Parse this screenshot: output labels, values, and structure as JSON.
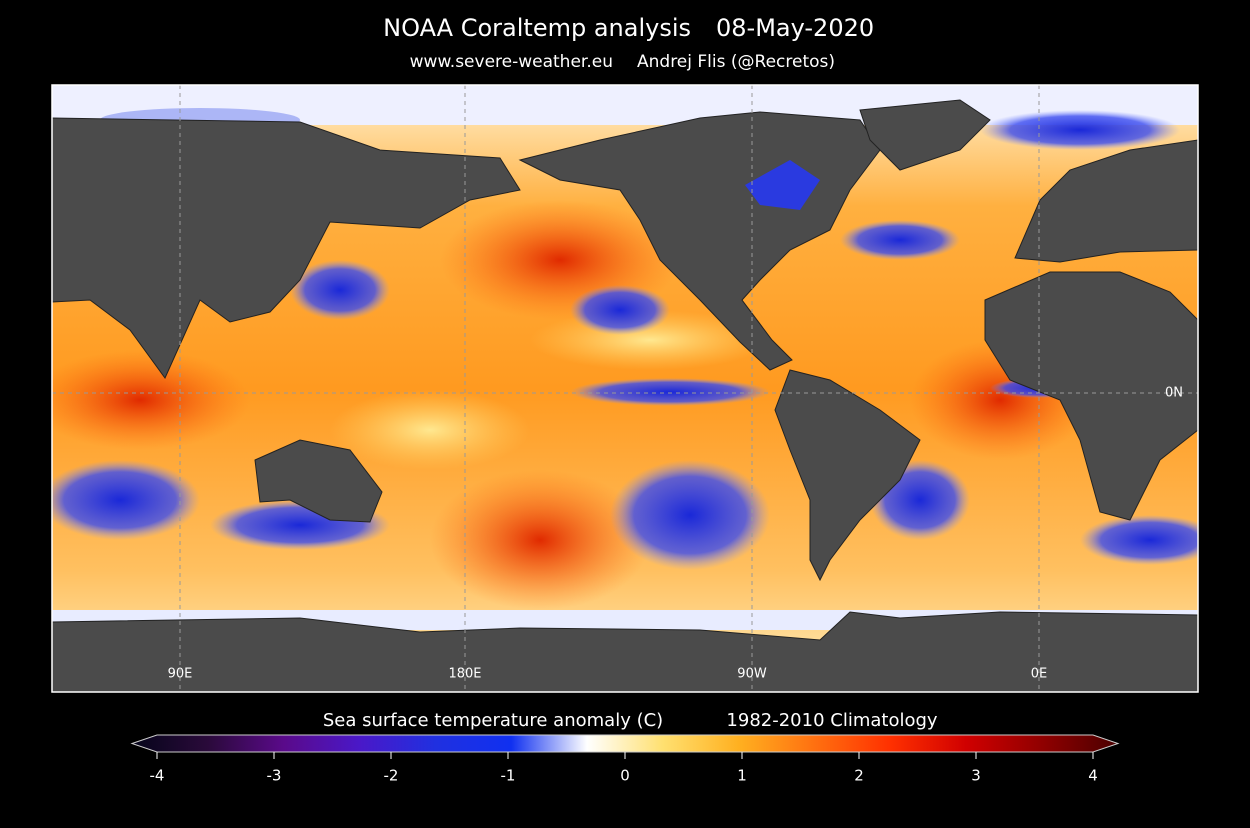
{
  "header": {
    "title": "NOAA Coraltemp analysis",
    "date": "08-May-2020",
    "site": "www.severe-weather.eu",
    "author": "Andrej Flis (@Recretos)"
  },
  "map": {
    "lon_labels": [
      "90E",
      "180E",
      "90W",
      "0E"
    ],
    "lat_label": "0N"
  },
  "colorbar": {
    "label": "Sea surface temperature anomaly (C)",
    "climatology": "1982-2010 Climatology",
    "range": [
      -4,
      4
    ],
    "ticks": [
      -4,
      -3,
      -2,
      -1,
      0,
      1,
      2,
      3,
      4
    ],
    "colors": [
      "#05051a",
      "#2a0a3a",
      "#5a0a8a",
      "#4a18c8",
      "#2030e0",
      "#1030f0",
      "#ffffff",
      "#ffe070",
      "#ffb020",
      "#ff7010",
      "#ff3000",
      "#d00000",
      "#900000",
      "#4a0000"
    ]
  }
}
